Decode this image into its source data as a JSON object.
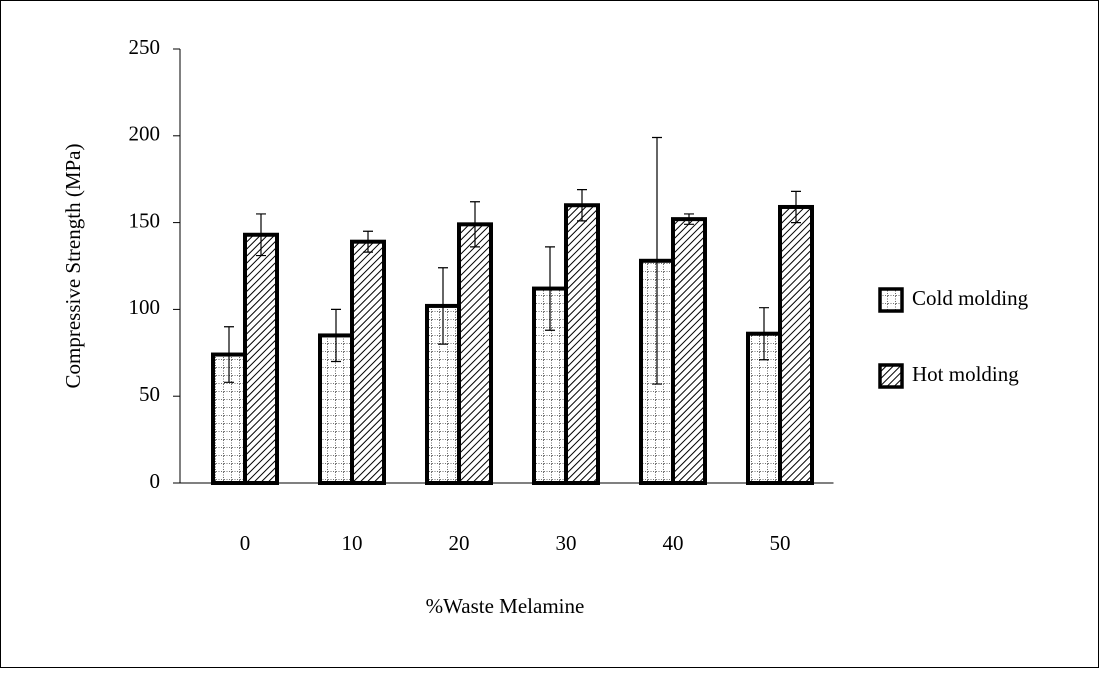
{
  "chart_data": {
    "type": "bar",
    "x_label": "%Waste Melamine",
    "y_label": "Compressive Strength (MPa)",
    "categories": [
      "0",
      "10",
      "20",
      "30",
      "40",
      "50"
    ],
    "series": [
      {
        "name": "Cold molding",
        "color": "#000000",
        "pattern": "grid",
        "values": [
          74,
          85,
          102,
          112,
          128,
          86
        ],
        "errors": [
          16,
          15,
          22,
          24,
          71,
          15
        ]
      },
      {
        "name": "Hot molding",
        "color": "#000000",
        "pattern": "hatch",
        "values": [
          143,
          139,
          149,
          160,
          152,
          159
        ],
        "errors": [
          12,
          6,
          13,
          9,
          3,
          9
        ]
      }
    ],
    "ylim": [
      0,
      250
    ],
    "yticks": [
      0,
      50,
      100,
      150,
      200,
      250
    ],
    "legend": "right"
  }
}
